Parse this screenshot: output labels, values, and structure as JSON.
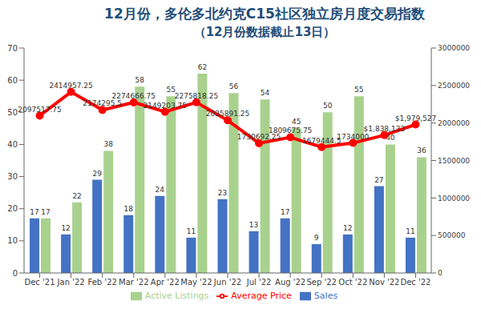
{
  "chart_data": {
    "type": "bar",
    "title": "12月份，多伦多北约克C15社区独立房月度交易指数",
    "subtitle": "（12月份数据截止13日）",
    "categories": [
      "Dec '21",
      "Jan '22",
      "Feb '22",
      "Mar '22",
      "Apr '22",
      "May '22",
      "Jun '22",
      "Jul '22",
      "Aug '22",
      "Sep '22",
      "Oct '22",
      "Nov '22",
      "Dec '22"
    ],
    "series": [
      {
        "name": "Sales",
        "type": "bar",
        "color": "#4472c4",
        "values": [
          17,
          12,
          29,
          18,
          24,
          11,
          23,
          13,
          17,
          9,
          12,
          27,
          11
        ]
      },
      {
        "name": "Active Listings",
        "type": "bar",
        "color": "#a9d18e",
        "values": [
          17,
          22,
          38,
          58,
          55,
          62,
          56,
          54,
          45,
          50,
          55,
          40,
          36
        ]
      },
      {
        "name": "Average Price",
        "type": "line",
        "axis": "y2",
        "color": "#ff0000",
        "marker": "circle",
        "values": [
          2097517.75,
          2414957.25,
          2174295.5,
          2274666.75,
          2149203.75,
          2275818.25,
          2035891.25,
          1730692.25,
          1809675.75,
          1679444.5,
          1734000,
          1838133,
          1979527
        ],
        "value_labels": [
          "2097517.75",
          "2414957.25",
          "2174295.5",
          "2274666.75",
          "2149203.75",
          "2275818.25",
          "2035891.25",
          "1730692.25",
          "1809675.75",
          "1679444.5",
          "1734000",
          "$1,838,133",
          "$1,979,527"
        ]
      }
    ],
    "ylim": [
      0,
      70
    ],
    "yticks": [
      0,
      10,
      20,
      30,
      40,
      50,
      60,
      70
    ],
    "y2lim": [
      0,
      3000000
    ],
    "y2ticks": [
      0,
      500000,
      1000000,
      1500000,
      2000000,
      2500000,
      3000000
    ],
    "grid": false,
    "legend": "bottom",
    "data_labels": true
  }
}
